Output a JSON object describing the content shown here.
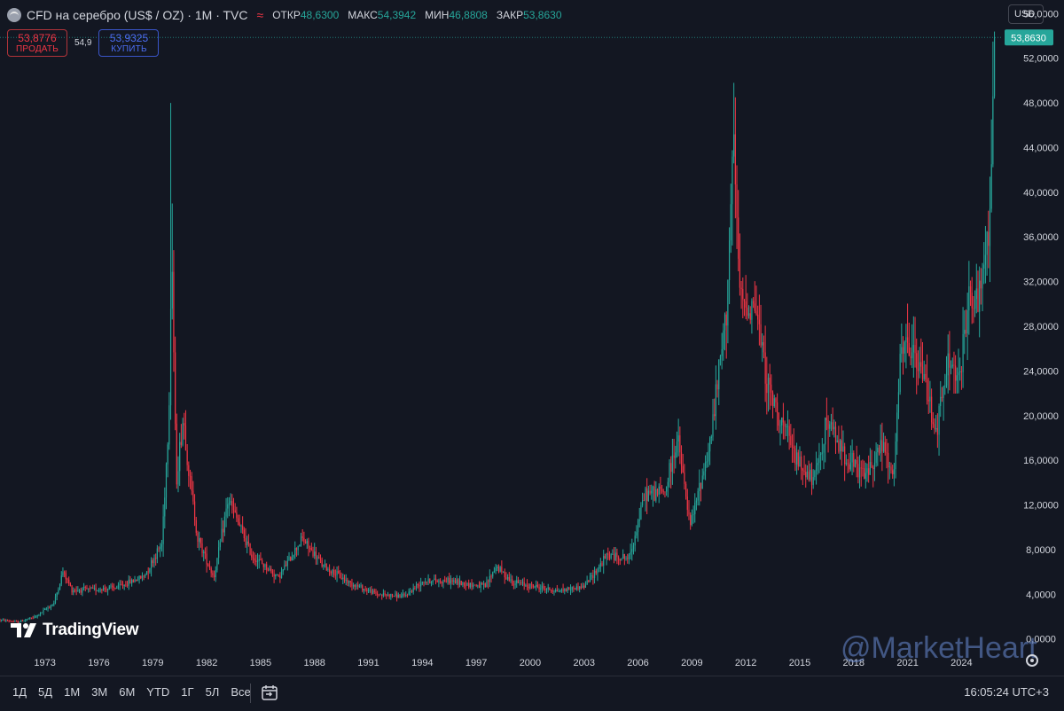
{
  "header": {
    "symbol": "CFD на серебро (US$ / OZ) · 1M · TVC",
    "wave_icon": "≈",
    "ohlc": [
      {
        "label": "ОТКР",
        "value": "48,6300"
      },
      {
        "label": "МАКС",
        "value": "54,3942"
      },
      {
        "label": "МИН",
        "value": "46,8808"
      },
      {
        "label": "ЗАКР",
        "value": "53,8630"
      }
    ]
  },
  "trade": {
    "sell_price": "53,8776",
    "sell_label": "ПРОДАТЬ",
    "spread": "54,9",
    "buy_price": "53,9325",
    "buy_label": "КУПИТЬ"
  },
  "currency": "USD",
  "logo_text": "TradingView",
  "watermark": "@MarketHeart",
  "timeframes": [
    "1Д",
    "5Д",
    "1М",
    "3М",
    "6М",
    "YTD",
    "1Г",
    "5Л",
    "Все"
  ],
  "clock": "16:05:24 UTC+3",
  "colors": {
    "up": "#26a69a",
    "down": "#f23645",
    "background": "#131722",
    "grid": "#1e222d",
    "last_price": "#26a69a"
  },
  "icons": [
    "silver-coin-icon",
    "wave-icon",
    "calendar-icon",
    "gear-icon",
    "tradingview-logo-icon"
  ],
  "chart_data": {
    "type": "candlestick",
    "timeframe": "1M",
    "currency": "USD",
    "xlabel": "",
    "ylabel": "",
    "grid": false,
    "ylim": [
      -0.9,
      56.9
    ],
    "xlim": [
      1970.5,
      2026.25
    ],
    "y_ticks": [
      "0,0000",
      "4,0000",
      "8,0000",
      "12,0000",
      "16,0000",
      "20,0000",
      "24,0000",
      "28,0000",
      "32,0000",
      "36,0000",
      "40,0000",
      "44,0000",
      "48,0000",
      "52,0000",
      "56,0000"
    ],
    "y_tick_values": [
      0,
      4,
      8,
      12,
      16,
      20,
      24,
      28,
      32,
      36,
      40,
      44,
      48,
      52,
      56
    ],
    "x_ticks": [
      "1973",
      "1976",
      "1979",
      "1982",
      "1985",
      "1988",
      "1991",
      "1994",
      "1997",
      "2000",
      "2003",
      "2006",
      "2009",
      "2012",
      "2015",
      "2018",
      "2021",
      "2024"
    ],
    "x_tick_values": [
      1973,
      1976,
      1979,
      1982,
      1985,
      1988,
      1991,
      1994,
      1997,
      2000,
      2003,
      2006,
      2009,
      2012,
      2015,
      2018,
      2021,
      2024
    ],
    "last_price": {
      "value": 53.863,
      "label": "53,8630"
    },
    "anchors": [
      [
        1970.5,
        1.7
      ],
      [
        1971.5,
        1.5
      ],
      [
        1972.5,
        2.0
      ],
      [
        1973.5,
        3.2
      ],
      [
        1974.0,
        6.0
      ],
      [
        1974.5,
        4.4
      ],
      [
        1975.5,
        4.4
      ],
      [
        1977.0,
        4.6
      ],
      [
        1978.5,
        5.6
      ],
      [
        1979.5,
        8.5
      ],
      [
        1979.9,
        20.0
      ],
      [
        1980.05,
        36.0
      ],
      [
        1980.3,
        14.0
      ],
      [
        1980.7,
        20.0
      ],
      [
        1981.0,
        15.0
      ],
      [
        1981.5,
        9.0
      ],
      [
        1982.4,
        5.5
      ],
      [
        1983.2,
        12.5
      ],
      [
        1983.6,
        11.0
      ],
      [
        1984.5,
        7.5
      ],
      [
        1986.0,
        5.5
      ],
      [
        1987.3,
        9.0
      ],
      [
        1988.5,
        6.5
      ],
      [
        1990.0,
        5.0
      ],
      [
        1991.5,
        4.0
      ],
      [
        1993.0,
        3.8
      ],
      [
        1994.0,
        5.2
      ],
      [
        1995.5,
        5.2
      ],
      [
        1996.5,
        4.9
      ],
      [
        1997.5,
        4.7
      ],
      [
        1998.1,
        6.5
      ],
      [
        1999.0,
        5.1
      ],
      [
        2001.5,
        4.3
      ],
      [
        2003.0,
        4.7
      ],
      [
        2004.3,
        7.5
      ],
      [
        2005.5,
        7.2
      ],
      [
        2006.4,
        13.0
      ],
      [
        2007.5,
        13.2
      ],
      [
        2008.2,
        18.0
      ],
      [
        2008.9,
        10.0
      ],
      [
        2010.0,
        17.5
      ],
      [
        2010.9,
        29.0
      ],
      [
        2011.3,
        44.0
      ],
      [
        2011.7,
        30.0
      ],
      [
        2012.5,
        30.0
      ],
      [
        2013.3,
        22.0
      ],
      [
        2014.0,
        19.5
      ],
      [
        2014.8,
        16.0
      ],
      [
        2015.8,
        14.0
      ],
      [
        2016.5,
        19.5
      ],
      [
        2017.5,
        16.5
      ],
      [
        2018.6,
        14.5
      ],
      [
        2019.6,
        17.5
      ],
      [
        2020.2,
        14.0
      ],
      [
        2020.6,
        25.0
      ],
      [
        2021.0,
        26.5
      ],
      [
        2022.0,
        23.0
      ],
      [
        2022.6,
        18.5
      ],
      [
        2023.3,
        25.0
      ],
      [
        2023.9,
        23.0
      ],
      [
        2024.4,
        31.0
      ],
      [
        2024.9,
        29.5
      ],
      [
        2025.3,
        33.5
      ],
      [
        2025.55,
        38.0
      ],
      [
        2025.75,
        47.0
      ],
      [
        2025.85,
        53.863
      ]
    ]
  }
}
